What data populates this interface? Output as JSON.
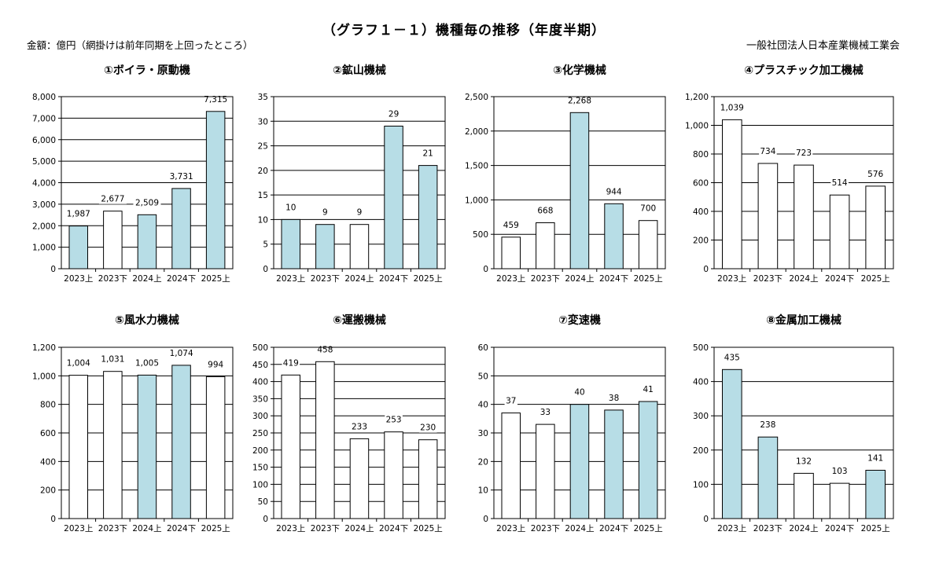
{
  "header": {
    "title": "（グラフ１－１）機種毎の推移（年度半期）",
    "unit": "金額：億円（網掛けは前年同期を上回ったところ）",
    "organization": "一般社団法人日本産業機械工業会"
  },
  "colors": {
    "above": "#b7dde6",
    "normal": "#ffffff",
    "stroke": "#000000",
    "grid": "#000000"
  },
  "chart_data": [
    {
      "type": "bar",
      "title": "①ボイラ・原動機",
      "categories": [
        "2023上",
        "2023下",
        "2024上",
        "2024下",
        "2025上"
      ],
      "values": [
        1987,
        2677,
        2509,
        3731,
        7315
      ],
      "value_labels": [
        "1,987",
        "2,677",
        "2,509",
        "3,731",
        "7,315"
      ],
      "highlight": [
        true,
        false,
        true,
        true,
        true
      ],
      "ylim": [
        0,
        8000
      ],
      "yticks": [
        "0",
        "1,000",
        "2,000",
        "3,000",
        "4,000",
        "5,000",
        "6,000",
        "7,000",
        "8,000"
      ]
    },
    {
      "type": "bar",
      "title": "②鉱山機械",
      "categories": [
        "2023上",
        "2023下",
        "2024上",
        "2024下",
        "2025上"
      ],
      "values": [
        10,
        9,
        9,
        29,
        21
      ],
      "value_labels": [
        "10",
        "9",
        "9",
        "29",
        "21"
      ],
      "highlight": [
        true,
        true,
        false,
        true,
        true
      ],
      "ylim": [
        0,
        35
      ],
      "yticks": [
        "0",
        "5",
        "10",
        "15",
        "20",
        "25",
        "30",
        "35"
      ]
    },
    {
      "type": "bar",
      "title": "③化学機械",
      "categories": [
        "2023上",
        "2023下",
        "2024上",
        "2024下",
        "2025上"
      ],
      "values": [
        459,
        668,
        2268,
        944,
        700
      ],
      "value_labels": [
        "459",
        "668",
        "2,268",
        "944",
        "700"
      ],
      "highlight": [
        false,
        false,
        true,
        true,
        false
      ],
      "ylim": [
        0,
        2500
      ],
      "yticks": [
        "0",
        "500",
        "1,000",
        "1,500",
        "2,000",
        "2,500"
      ]
    },
    {
      "type": "bar",
      "title": "④プラスチック加工機械",
      "categories": [
        "2023上",
        "2023下",
        "2024上",
        "2024下",
        "2025上"
      ],
      "values": [
        1039,
        734,
        723,
        514,
        576
      ],
      "value_labels": [
        "1,039",
        "734",
        "723",
        "514",
        "576"
      ],
      "highlight": [
        false,
        false,
        false,
        false,
        false
      ],
      "ylim": [
        0,
        1200
      ],
      "yticks": [
        "0",
        "200",
        "400",
        "600",
        "800",
        "1,000",
        "1,200"
      ]
    },
    {
      "type": "bar",
      "title": "⑤風水力機械",
      "categories": [
        "2023上",
        "2023下",
        "2024上",
        "2024下",
        "2025上"
      ],
      "values": [
        1004,
        1031,
        1005,
        1074,
        994
      ],
      "value_labels": [
        "1,004",
        "1,031",
        "1,005",
        "1,074",
        "994"
      ],
      "highlight": [
        false,
        false,
        true,
        true,
        false
      ],
      "ylim": [
        0,
        1200
      ],
      "yticks": [
        "0",
        "200",
        "400",
        "600",
        "800",
        "1,000",
        "1,200"
      ]
    },
    {
      "type": "bar",
      "title": "⑥運搬機械",
      "categories": [
        "2023上",
        "2023下",
        "2024上",
        "2024下",
        "2025上"
      ],
      "values": [
        419,
        458,
        233,
        253,
        230
      ],
      "value_labels": [
        "419",
        "458",
        "233",
        "253",
        "230"
      ],
      "highlight": [
        false,
        false,
        false,
        false,
        false
      ],
      "ylim": [
        0,
        500
      ],
      "yticks": [
        "0",
        "50",
        "100",
        "150",
        "200",
        "250",
        "300",
        "350",
        "400",
        "450",
        "500"
      ]
    },
    {
      "type": "bar",
      "title": "⑦変速機",
      "categories": [
        "2023上",
        "2023下",
        "2024上",
        "2024下",
        "2025上"
      ],
      "values": [
        37,
        33,
        40,
        38,
        41
      ],
      "value_labels": [
        "37",
        "33",
        "40",
        "38",
        "41"
      ],
      "highlight": [
        false,
        false,
        true,
        true,
        true
      ],
      "ylim": [
        0,
        60
      ],
      "yticks": [
        "0",
        "10",
        "20",
        "30",
        "40",
        "50",
        "60"
      ]
    },
    {
      "type": "bar",
      "title": "⑧金属加工機械",
      "categories": [
        "2023上",
        "2023下",
        "2024上",
        "2024下",
        "2025上"
      ],
      "values": [
        435,
        238,
        132,
        103,
        141
      ],
      "value_labels": [
        "435",
        "238",
        "132",
        "103",
        "141"
      ],
      "highlight": [
        true,
        true,
        false,
        false,
        true
      ],
      "ylim": [
        0,
        500
      ],
      "yticks": [
        "0",
        "100",
        "200",
        "300",
        "400",
        "500"
      ]
    }
  ]
}
